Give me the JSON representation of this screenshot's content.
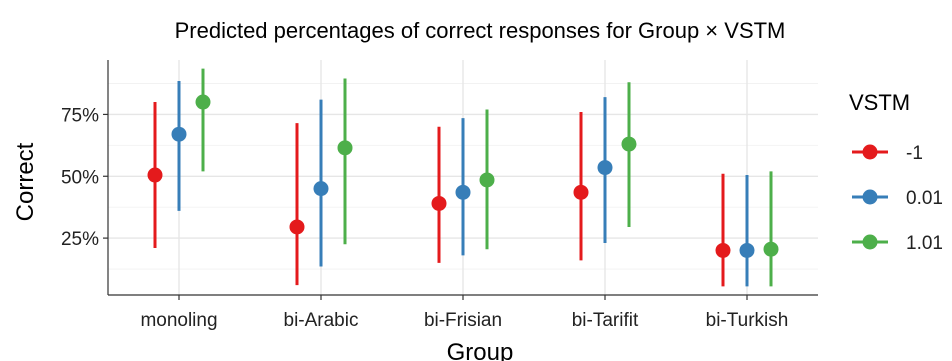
{
  "chart_data": {
    "type": "scatter",
    "title": "Predicted percentages of correct responses for Group × VSTM",
    "xlabel": "Group",
    "ylabel": "Correct",
    "categories": [
      "monoling",
      "bi-Arabic",
      "bi-Frisian",
      "bi-Tarifit",
      "bi-Turkish"
    ],
    "ylim": [
      2,
      97
    ],
    "y_ticks": [
      25,
      50,
      75
    ],
    "y_tick_labels": [
      "25%",
      "50%",
      "75%"
    ],
    "grid": true,
    "legend": {
      "title": "VSTM",
      "placement": "right"
    },
    "series": [
      {
        "name": "-1",
        "color": "#e41a1c",
        "values": [
          50.5,
          29.5,
          39,
          43.5,
          20
        ],
        "lower": [
          21,
          6,
          15,
          16,
          5.5
        ],
        "upper": [
          80,
          71.5,
          70,
          76,
          51
        ]
      },
      {
        "name": "0.01",
        "color": "#377eb8",
        "values": [
          67,
          45,
          43.5,
          53.5,
          20
        ],
        "lower": [
          36,
          13.5,
          18,
          23,
          5.5
        ],
        "upper": [
          88.5,
          81,
          73.5,
          82,
          50.5
        ]
      },
      {
        "name": "1.01",
        "color": "#4daf4a",
        "values": [
          80,
          61.5,
          48.5,
          63,
          20.5
        ],
        "lower": [
          52,
          22.5,
          20.5,
          29.5,
          5.5
        ],
        "upper": [
          93.5,
          89.5,
          77,
          88,
          52
        ]
      }
    ]
  }
}
